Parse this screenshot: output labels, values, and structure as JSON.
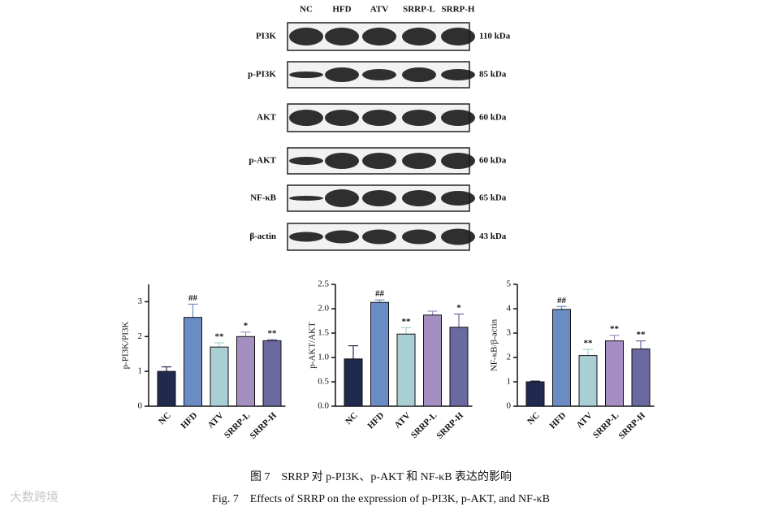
{
  "blot": {
    "lanes": [
      "NC",
      "HFD",
      "ATV",
      "SRRP-L",
      "SRRP-H"
    ],
    "rows": [
      {
        "label": "PI3K",
        "size": "110 kDa"
      },
      {
        "label": "p-PI3K",
        "size": "85 kDa"
      },
      {
        "label": "AKT",
        "size": "60 kDa"
      },
      {
        "label": "p-AKT",
        "size": "60 kDa"
      },
      {
        "label": "NF-κB",
        "size": "65 kDa"
      },
      {
        "label": "β-actin",
        "size": "43 kDa"
      }
    ]
  },
  "chart_data": [
    {
      "type": "bar",
      "ylabel": "p-PI3K/PI3K",
      "categories": [
        "NC",
        "HFD",
        "ATV",
        "SRRP-L",
        "SRRP-H"
      ],
      "values": [
        1.0,
        2.55,
        1.7,
        2.0,
        1.88
      ],
      "errors": [
        0.13,
        0.38,
        0.12,
        0.13,
        0.03
      ],
      "annotations": [
        null,
        "##",
        "**",
        "*",
        "**"
      ],
      "colors": [
        "#1f2a4e",
        "#6a8cc4",
        "#a9cfd5",
        "#a58fc2",
        "#6b6aa0"
      ],
      "ylim": [
        0,
        3.5
      ],
      "yticks": [
        0,
        1,
        2,
        3
      ]
    },
    {
      "type": "bar",
      "ylabel": "p-AKT/AKT",
      "categories": [
        "NC",
        "HFD",
        "ATV",
        "SRRP-L",
        "SRRP-H"
      ],
      "values": [
        0.97,
        2.13,
        1.48,
        1.87,
        1.62
      ],
      "errors": [
        0.27,
        0.05,
        0.13,
        0.08,
        0.27
      ],
      "annotations": [
        null,
        "##",
        "**",
        null,
        "*"
      ],
      "colors": [
        "#1f2a4e",
        "#6a8cc4",
        "#a9cfd5",
        "#a58fc2",
        "#6b6aa0"
      ],
      "ylim": [
        0,
        2.5
      ],
      "yticks": [
        {
          "value": 0,
          "label": "0.0"
        },
        {
          "value": 0.5,
          "label": "0.5"
        },
        {
          "value": 1,
          "label": "1.0"
        },
        {
          "value": 1.5,
          "label": "1.5"
        },
        {
          "value": 2,
          "label": "2.0"
        },
        {
          "value": 2.5,
          "label": "2.5"
        }
      ]
    },
    {
      "type": "bar",
      "ylabel": "NF-κB/β-actin",
      "categories": [
        "NC",
        "HFD",
        "ATV",
        "SRRP-L",
        "SRRP-H"
      ],
      "values": [
        1.0,
        3.97,
        2.08,
        2.68,
        2.35
      ],
      "errors": [
        0.03,
        0.12,
        0.25,
        0.23,
        0.33
      ],
      "annotations": [
        null,
        "##",
        "**",
        "**",
        "**"
      ],
      "colors": [
        "#1f2a4e",
        "#6a8cc4",
        "#a9cfd5",
        "#a58fc2",
        "#6b6aa0"
      ],
      "ylim": [
        0,
        5
      ],
      "yticks": [
        0,
        1,
        2,
        3,
        4,
        5
      ]
    }
  ],
  "caption": {
    "zh": "图 7　SRRP 对 p-PI3K、p-AKT 和 NF-κB 表达的影响",
    "en": "Fig. 7　Effects of SRRP on the expression of p-PI3K, p-AKT, and NF-κB"
  },
  "watermark": "大数跨境"
}
